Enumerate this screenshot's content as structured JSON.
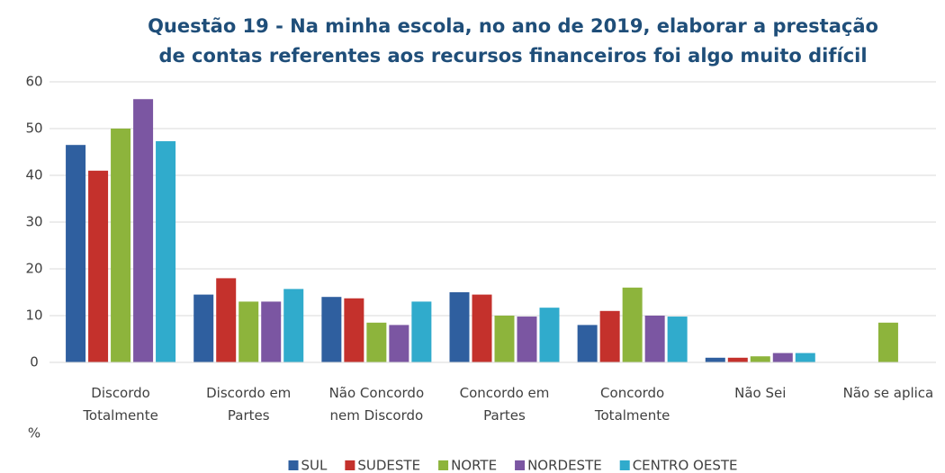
{
  "chart_data": {
    "type": "bar",
    "title": [
      "Questão 19 - Na minha escola, no ano de 2019, elaborar a prestação",
      "de contas referentes aos recursos financeiros foi algo muito difícil"
    ],
    "y_label": "%",
    "categories": [
      "Discordo\nTotalmente",
      "Discordo em\nPartes",
      "Não Concordo\nnem Discordo",
      "Concordo em\nPartes",
      "Concordo\nTotalmente",
      "Não Sei",
      "Não se aplica"
    ],
    "series": [
      {
        "name": "SUL",
        "color": "#2f5f9f",
        "values": [
          46.5,
          14.5,
          14,
          15,
          8,
          1,
          0
        ]
      },
      {
        "name": "SUDESTE",
        "color": "#c4312c",
        "values": [
          41,
          18,
          13.7,
          14.5,
          11,
          1,
          0
        ]
      },
      {
        "name": "NORTE",
        "color": "#8db43c",
        "values": [
          50,
          13,
          8.5,
          10,
          16,
          1.3,
          8.5
        ]
      },
      {
        "name": "NORDESTE",
        "color": "#7b56a2",
        "values": [
          56.3,
          13,
          8,
          9.8,
          10,
          2,
          0
        ]
      },
      {
        "name": "CENTRO OESTE",
        "color": "#30abcc",
        "values": [
          47.3,
          15.7,
          13,
          11.7,
          9.8,
          2,
          0
        ]
      }
    ],
    "ylim": [
      0,
      60
    ],
    "yticks": [
      0,
      10,
      20,
      30,
      40,
      50,
      60
    ],
    "grid": true,
    "legend": "bottom"
  }
}
